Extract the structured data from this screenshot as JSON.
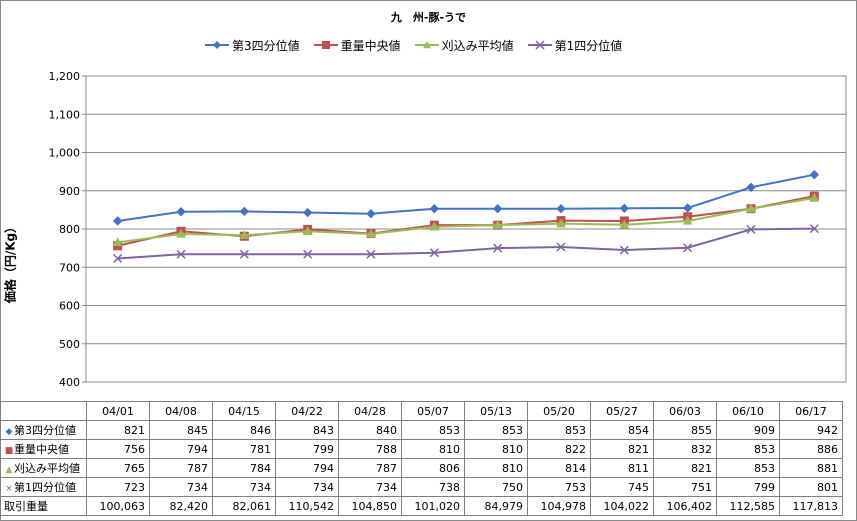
{
  "chart_data": {
    "type": "line",
    "title": "九　州-豚-うで",
    "ylabel": "価格（円/Kg）",
    "ylim": [
      400,
      1200
    ],
    "yticks": [
      "400",
      "500",
      "600",
      "700",
      "800",
      "900",
      "1,000",
      "1,100",
      "1,200"
    ],
    "categories": [
      "04/01",
      "04/08",
      "04/15",
      "04/22",
      "04/28",
      "05/07",
      "05/13",
      "05/20",
      "05/27",
      "06/03",
      "06/10",
      "06/17"
    ],
    "grid": true,
    "legend_position": "top",
    "series": [
      {
        "name": "第3四分位値",
        "color": "#4472C4",
        "marker": "diamond",
        "values": [
          821,
          845,
          846,
          843,
          840,
          853,
          853,
          853,
          854,
          855,
          909,
          942
        ]
      },
      {
        "name": "重量中央値",
        "color": "#C0504D",
        "marker": "square",
        "values": [
          756,
          794,
          781,
          799,
          788,
          810,
          810,
          822,
          821,
          832,
          853,
          886
        ]
      },
      {
        "name": "刈込み平均値",
        "color": "#9BBB59",
        "marker": "triangle",
        "values": [
          765,
          787,
          784,
          794,
          787,
          806,
          810,
          814,
          811,
          821,
          853,
          881
        ]
      },
      {
        "name": "第1四分位値",
        "color": "#8064A2",
        "marker": "x",
        "values": [
          723,
          734,
          734,
          734,
          734,
          738,
          750,
          753,
          745,
          751,
          799,
          801
        ]
      }
    ],
    "extra_row": {
      "name": "取引重量",
      "values": [
        "100,063",
        "82,420",
        "82,061",
        "110,542",
        "104,850",
        "101,020",
        "84,979",
        "104,978",
        "104,022",
        "106,402",
        "112,585",
        "117,813"
      ]
    }
  }
}
